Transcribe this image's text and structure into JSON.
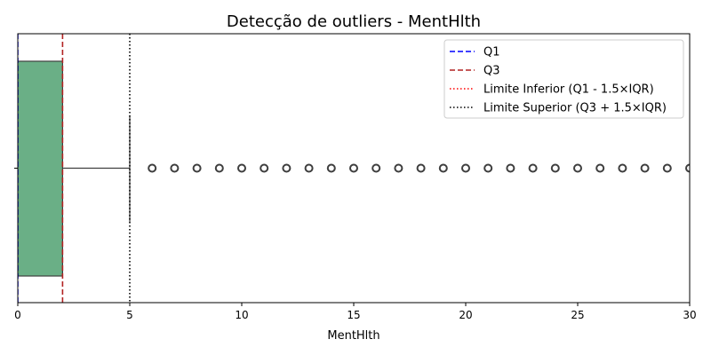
{
  "chart_data": {
    "type": "box",
    "title": "Detecção de outliers - MentHlth",
    "xlabel": "MentHlth",
    "ylabel": "",
    "xlim": [
      0,
      30
    ],
    "xticks": [
      0,
      5,
      10,
      15,
      20,
      25,
      30
    ],
    "orientation": "horizontal",
    "box": {
      "min": 0,
      "q1": 0,
      "median": 0,
      "q3": 2,
      "whisker_high": 5,
      "color": "#6aaf86",
      "outliers": [
        6,
        7,
        8,
        9,
        10,
        11,
        12,
        13,
        14,
        15,
        16,
        17,
        18,
        19,
        20,
        21,
        22,
        23,
        24,
        25,
        26,
        27,
        28,
        29,
        30
      ]
    },
    "reference_lines": [
      {
        "name": "Q1",
        "value": 0,
        "color": "#0000ff",
        "style": "dashed"
      },
      {
        "name": "Q3",
        "value": 2,
        "color": "#b22222",
        "style": "dashed"
      },
      {
        "name": "Limite Inferior (Q1 - 1.5×IQR)",
        "value": -3,
        "color": "#ff0000",
        "style": "dotted"
      },
      {
        "name": "Limite Superior (Q3 + 1.5×IQR)",
        "value": 5,
        "color": "#000000",
        "style": "dotted"
      }
    ],
    "legend_position": "top-right",
    "grid": false
  }
}
